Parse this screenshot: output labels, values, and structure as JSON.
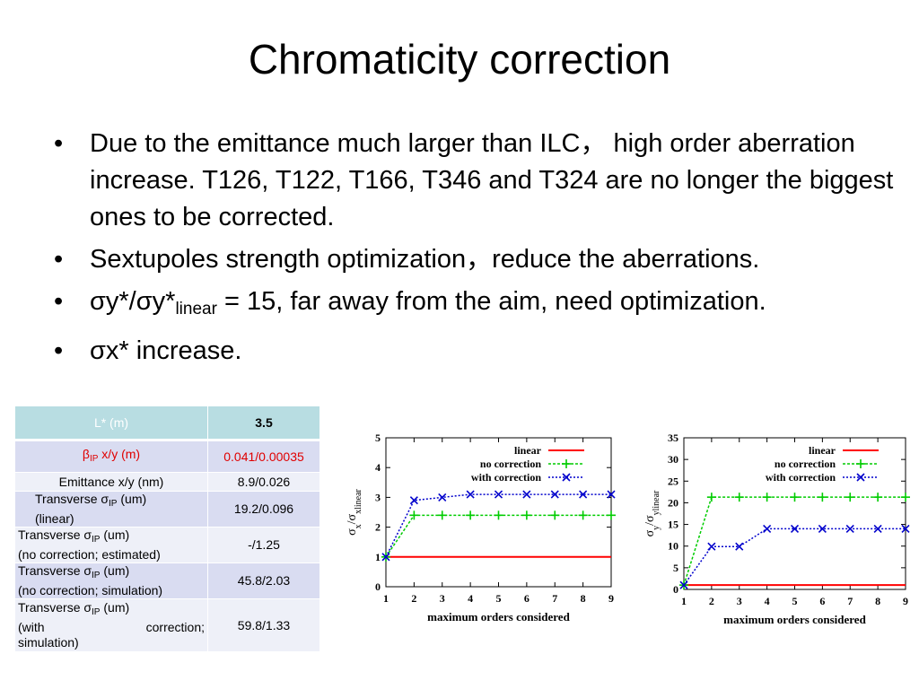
{
  "slide_title": "Chromaticity correction",
  "bullets": [
    {
      "pre": "Due to the emittance much larger than ILC， high order aberration increase. T126, T122, T166, T346 and T324 are no longer the biggest ones to be corrected."
    },
    {
      "pre": "Sextupoles strength optimization，reduce the aberrations."
    },
    {
      "pre": "σy*/σy*",
      "sub": "linear",
      "post": " = 15, far away from the aim, need optimization."
    },
    {
      "pre": "σx* increase."
    }
  ],
  "bullet_symbol": "•",
  "table": {
    "header": {
      "label": "L* (m)",
      "value": "3.5"
    },
    "beta": {
      "sym": "β",
      "sub": "IP",
      "rest": " x/y (m)",
      "value": "0.041/0.00035"
    },
    "emittance": {
      "label": "Emittance  x/y (nm)",
      "value": "8.9/0.026"
    },
    "sigma_sym": "σ",
    "sigma_sub": "IP",
    "linear": {
      "pre": "Transverse  ",
      "post": " (um)",
      "line2": "(linear)",
      "value": "19.2/0.096"
    },
    "est": {
      "pre": "Transverse  ",
      "post": " (um)",
      "line2": "(no correction; estimated)",
      "value": "-/1.25"
    },
    "sim": {
      "pre": "Transverse  ",
      "post": " (um)",
      "line2": "(no correction; simulation)",
      "value": "45.8/2.03"
    },
    "withc": {
      "pre": "Transverse  ",
      "post": " (um)",
      "line2a": "(with",
      "line2b": "correction;",
      "line3": "simulation)",
      "value": "59.8/1.33"
    }
  },
  "colors": {
    "linear": "#ff0000",
    "no_correction": "#00cc00",
    "with_correction": "#0000cc",
    "header_bg": "#b8dde2",
    "row_dark": "#d9dcf1",
    "row_light": "#eef0f8",
    "accent_red": "#e00000"
  },
  "chart_data": [
    {
      "type": "line",
      "ylabel_main": "σ",
      "ylabel_sub1": "x",
      "ylabel_mid": "/σ",
      "ylabel_sub2": "xlinear",
      "xlabel": "maximum orders considered",
      "x": [
        1,
        2,
        3,
        4,
        5,
        6,
        7,
        8,
        9
      ],
      "xlim": [
        1,
        9
      ],
      "ylim": [
        0,
        5
      ],
      "yticks": [
        0,
        1,
        2,
        3,
        4,
        5
      ],
      "legend": "top-right",
      "series": [
        {
          "name": "linear",
          "values": [
            1,
            1,
            1,
            1,
            1,
            1,
            1,
            1,
            1
          ]
        },
        {
          "name": "no correction",
          "values": [
            1,
            2.4,
            2.4,
            2.4,
            2.4,
            2.4,
            2.4,
            2.4,
            2.4
          ]
        },
        {
          "name": "with correction",
          "values": [
            1,
            2.9,
            3.0,
            3.1,
            3.1,
            3.1,
            3.1,
            3.1,
            3.1
          ]
        }
      ]
    },
    {
      "type": "line",
      "ylabel_main": "σ",
      "ylabel_sub1": "y",
      "ylabel_mid": "/σ",
      "ylabel_sub2": "ylinear",
      "xlabel": "maximum orders considered",
      "x": [
        1,
        2,
        3,
        4,
        5,
        6,
        7,
        8,
        9
      ],
      "xlim": [
        1,
        9
      ],
      "ylim": [
        0,
        35
      ],
      "yticks": [
        0,
        5,
        10,
        15,
        20,
        25,
        30,
        35
      ],
      "legend": "top-right",
      "series": [
        {
          "name": "linear",
          "values": [
            1,
            1,
            1,
            1,
            1,
            1,
            1,
            1,
            1
          ]
        },
        {
          "name": "no correction",
          "values": [
            1,
            21.3,
            21.3,
            21.3,
            21.3,
            21.3,
            21.3,
            21.3,
            21.3
          ]
        },
        {
          "name": "with correction",
          "values": [
            1,
            9.9,
            9.9,
            14,
            14,
            14,
            14,
            14,
            14
          ]
        }
      ]
    }
  ]
}
